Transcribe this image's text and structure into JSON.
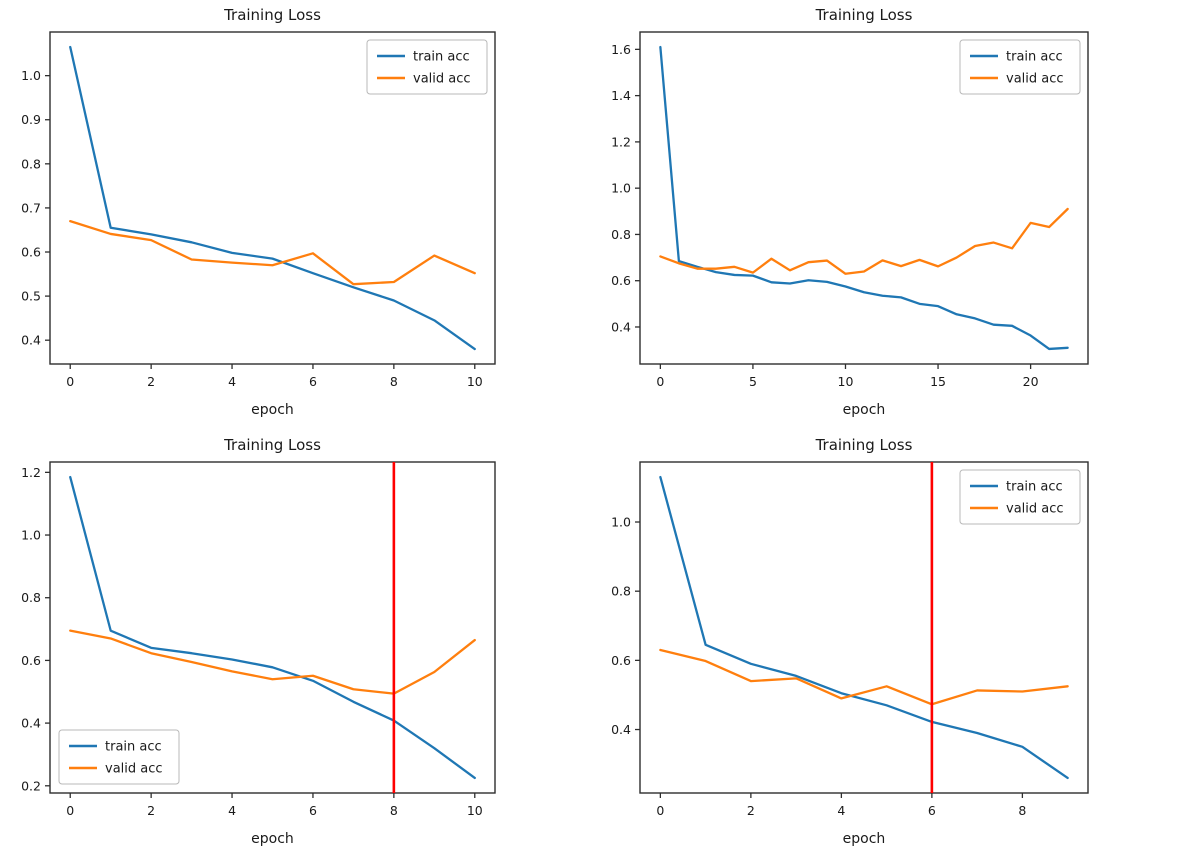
{
  "figure": {
    "background": "#ffffff",
    "axis_color": "#2e2e2e",
    "text_color": "#1a1a1a",
    "legend_border_color": "#b8b8b8",
    "legend_background": "#ffffff"
  },
  "chart_data": [
    {
      "type": "line",
      "title": "Training Loss",
      "xlabel": "epoch",
      "ylabel": "",
      "grid": false,
      "legend_position": "upper-right",
      "x": [
        0,
        1,
        2,
        3,
        4,
        5,
        6,
        7,
        8,
        9,
        10
      ],
      "series": [
        {
          "name": "train acc",
          "color": "#1f77b4",
          "values": [
            1.065,
            0.655,
            0.64,
            0.622,
            0.598,
            0.585,
            0.552,
            0.52,
            0.49,
            0.445,
            0.38
          ]
        },
        {
          "name": "valid acc",
          "color": "#ff7f0e",
          "values": [
            0.67,
            0.641,
            0.627,
            0.583,
            0.576,
            0.57,
            0.597,
            0.527,
            0.532,
            0.592,
            0.552
          ]
        }
      ],
      "xlim": [
        -0.5,
        10.5
      ],
      "ylim": [
        0.346,
        1.099
      ],
      "xticks": [
        0,
        2,
        4,
        6,
        8,
        10
      ],
      "yticks": [
        0.4,
        0.5,
        0.6,
        0.7,
        0.8,
        0.9,
        1.0
      ],
      "vline": null
    },
    {
      "type": "line",
      "title": "Training Loss",
      "xlabel": "epoch",
      "ylabel": "",
      "grid": false,
      "legend_position": "upper-right",
      "x": [
        0,
        1,
        2,
        3,
        4,
        5,
        6,
        7,
        8,
        9,
        10,
        11,
        12,
        13,
        14,
        15,
        16,
        17,
        18,
        19,
        20,
        21,
        22
      ],
      "series": [
        {
          "name": "train acc",
          "color": "#1f77b4",
          "values": [
            1.61,
            0.685,
            0.66,
            0.637,
            0.625,
            0.622,
            0.593,
            0.588,
            0.602,
            0.595,
            0.575,
            0.55,
            0.535,
            0.528,
            0.5,
            0.49,
            0.455,
            0.437,
            0.41,
            0.405,
            0.363,
            0.305,
            0.31
          ]
        },
        {
          "name": "valid acc",
          "color": "#ff7f0e",
          "values": [
            0.705,
            0.675,
            0.652,
            0.652,
            0.66,
            0.635,
            0.695,
            0.645,
            0.68,
            0.687,
            0.63,
            0.64,
            0.688,
            0.663,
            0.69,
            0.662,
            0.7,
            0.75,
            0.765,
            0.74,
            0.85,
            0.832,
            0.91
          ]
        }
      ],
      "xlim": [
        -1.1,
        23.1
      ],
      "ylim": [
        0.24,
        1.675
      ],
      "xticks": [
        0,
        5,
        10,
        15,
        20
      ],
      "yticks": [
        0.4,
        0.6,
        0.8,
        1.0,
        1.2,
        1.4,
        1.6
      ],
      "vline": null
    },
    {
      "type": "line",
      "title": "Training Loss",
      "xlabel": "epoch",
      "ylabel": "",
      "grid": false,
      "legend_position": "lower-left",
      "x": [
        0,
        1,
        2,
        3,
        4,
        5,
        6,
        7,
        8,
        9,
        10
      ],
      "series": [
        {
          "name": "train acc",
          "color": "#1f77b4",
          "values": [
            1.185,
            0.695,
            0.64,
            0.623,
            0.603,
            0.578,
            0.535,
            0.468,
            0.408,
            0.32,
            0.225
          ]
        },
        {
          "name": "valid acc",
          "color": "#ff7f0e",
          "values": [
            0.695,
            0.67,
            0.623,
            0.595,
            0.565,
            0.54,
            0.551,
            0.508,
            0.494,
            0.563,
            0.665
          ]
        }
      ],
      "xlim": [
        -0.5,
        10.5
      ],
      "ylim": [
        0.177,
        1.233
      ],
      "xticks": [
        0,
        2,
        4,
        6,
        8,
        10
      ],
      "yticks": [
        0.2,
        0.4,
        0.6,
        0.8,
        1.0,
        1.2
      ],
      "vline": {
        "x": 8,
        "color": "#ff0000"
      }
    },
    {
      "type": "line",
      "title": "Training Loss",
      "xlabel": "epoch",
      "ylabel": "",
      "grid": false,
      "legend_position": "upper-right",
      "x": [
        0,
        1,
        2,
        3,
        4,
        5,
        6,
        7,
        8,
        9
      ],
      "series": [
        {
          "name": "train acc",
          "color": "#1f77b4",
          "values": [
            1.13,
            0.645,
            0.59,
            0.555,
            0.505,
            0.47,
            0.422,
            0.39,
            0.35,
            0.26
          ]
        },
        {
          "name": "valid acc",
          "color": "#ff7f0e",
          "values": [
            0.63,
            0.598,
            0.54,
            0.548,
            0.49,
            0.525,
            0.473,
            0.513,
            0.51,
            0.525
          ]
        }
      ],
      "xlim": [
        -0.45,
        9.45
      ],
      "ylim": [
        0.2165,
        1.1735
      ],
      "xticks": [
        0,
        2,
        4,
        6,
        8
      ],
      "yticks": [
        0.4,
        0.6,
        0.8,
        1.0
      ],
      "vline": {
        "x": 6,
        "color": "#ff0000"
      }
    }
  ]
}
